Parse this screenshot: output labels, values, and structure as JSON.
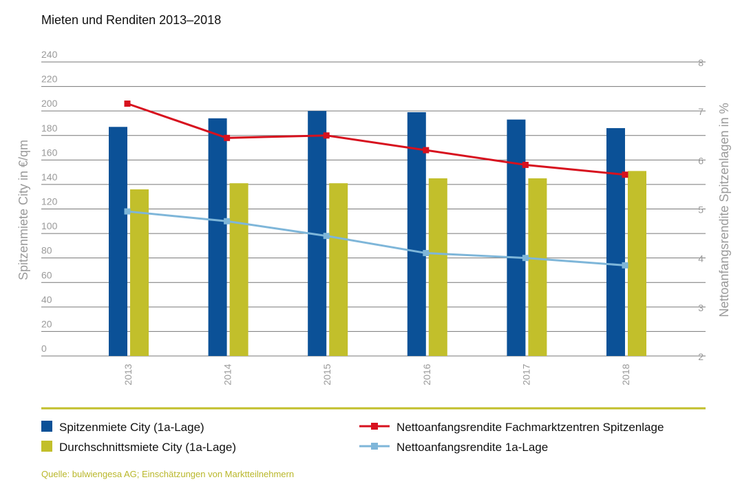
{
  "colors": {
    "bar_spitzen": "#0b5197",
    "bar_durchschnitt": "#c2bf2b",
    "line_fachmarkt": "#d7111e",
    "line_1a": "#7eb6d9",
    "grid": "#777777",
    "separator": "#c2bf2b",
    "source": "#b9b72a"
  },
  "source_text": "Quelle: bulwiengesa AG; Einschätzungen von Marktteilnehmern",
  "chart_data": {
    "type": "bar",
    "title": "Mieten und Renditen 2013–2018",
    "ylabel": "Spitzenmiete City in €/qm",
    "y2label": "Nettoanfangsrendite Spitzenlagen in %",
    "xlabel": "",
    "categories": [
      "2013",
      "2014",
      "2015",
      "2016",
      "2017",
      "2018"
    ],
    "ylim": [
      0,
      240
    ],
    "y2lim": [
      2,
      8
    ],
    "yticks": [
      0,
      20,
      40,
      60,
      80,
      100,
      120,
      140,
      160,
      180,
      200,
      220,
      240
    ],
    "y2ticks": [
      2,
      3,
      4,
      5,
      6,
      7,
      8
    ],
    "grid": true,
    "legend_position": "bottom",
    "bar_series": [
      {
        "name": "Spitzenmiete City (1a-Lage)",
        "values": [
          187,
          194,
          200,
          199,
          193,
          186
        ],
        "axis": "left"
      },
      {
        "name": "Durchschnittsmiete City (1a-Lage)",
        "values": [
          136,
          141,
          141,
          145,
          145,
          151
        ],
        "axis": "left"
      }
    ],
    "line_series": [
      {
        "name": "Nettoanfangsrendite Fachmarktzentren Spitzenlage",
        "values": [
          7.15,
          6.45,
          6.5,
          6.2,
          5.9,
          5.7
        ],
        "axis": "right"
      },
      {
        "name": "Nettoanfangsrendite 1a-Lage",
        "values": [
          4.95,
          4.75,
          4.45,
          4.1,
          4.0,
          3.85
        ],
        "axis": "right"
      }
    ]
  }
}
